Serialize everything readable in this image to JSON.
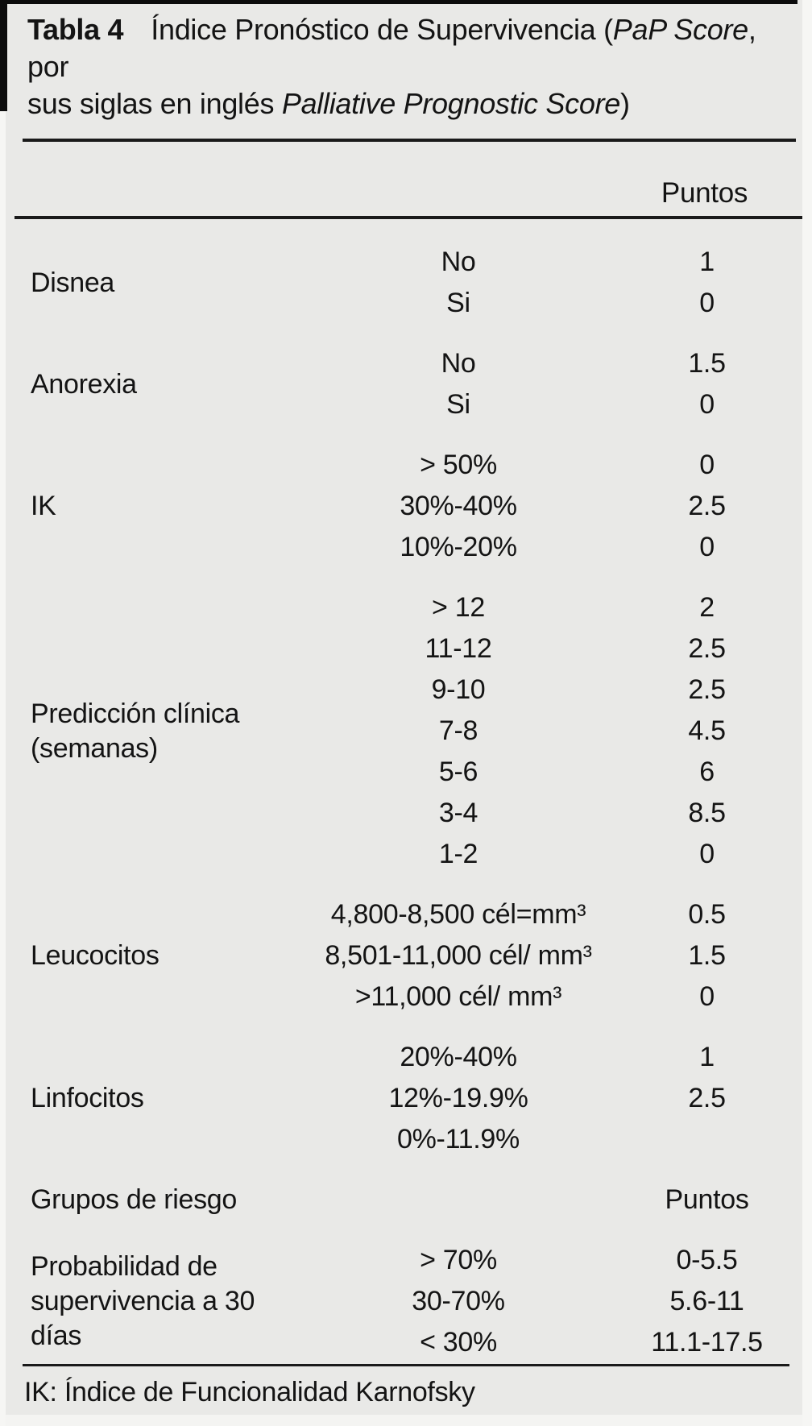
{
  "title": {
    "label": "Tabla 4",
    "segment1": "Índice Pronóstico de Supervivencia (",
    "italic1": "PaP Score",
    "segment2": ", por\nsus siglas en inglés ",
    "italic2": "Palliative Prognostic Score",
    "segment3": ")"
  },
  "header": {
    "points_label": "Puntos"
  },
  "table": {
    "groups": [
      {
        "label": "Disnea",
        "rows": [
          {
            "value": "No",
            "points": "1"
          },
          {
            "value": "Si",
            "points": "0"
          }
        ]
      },
      {
        "label": "Anorexia",
        "rows": [
          {
            "value": "No",
            "points": "1.5"
          },
          {
            "value": "Si",
            "points": "0"
          }
        ]
      },
      {
        "label": "IK",
        "rows": [
          {
            "value": "> 50%",
            "points": "0"
          },
          {
            "value": "30%-40%",
            "points": "2.5"
          },
          {
            "value": "10%-20%",
            "points": "0"
          }
        ]
      },
      {
        "label": "Predicción clínica\n(semanas)",
        "rows": [
          {
            "value": "> 12",
            "points": "2"
          },
          {
            "value": "11-12",
            "points": "2.5"
          },
          {
            "value": "9-10",
            "points": "2.5"
          },
          {
            "value": "7-8",
            "points": "4.5"
          },
          {
            "value": "5-6",
            "points": "6"
          },
          {
            "value": "3-4",
            "points": "8.5"
          },
          {
            "value": "1-2",
            "points": "0"
          }
        ]
      },
      {
        "label": "Leucocitos",
        "rows": [
          {
            "value": "4,800-8,500 cél=mm³",
            "points": "0.5"
          },
          {
            "value": "8,501-11,000 cél/ mm³",
            "points": "1.5"
          },
          {
            "value": ">11,000 cél/ mm³",
            "points": "0"
          }
        ]
      },
      {
        "label": "Linfocitos",
        "rows": [
          {
            "value": "20%-40%",
            "points": "1"
          },
          {
            "value": "12%-19.9%",
            "points": "2.5"
          },
          {
            "value": "0%-11.9%",
            "points": ""
          }
        ]
      }
    ],
    "subheader": {
      "label": "Grupos de riesgo",
      "points_label": "Puntos"
    },
    "risk_group": {
      "label": "Probabilidad de\nsupervivencia a 30\ndías",
      "rows": [
        {
          "value": "> 70%",
          "points": "0-5.5"
        },
        {
          "value": "30-70%",
          "points": "5.6-11"
        },
        {
          "value": "< 30%",
          "points": "11.1-17.5"
        }
      ]
    }
  },
  "footnote": "IK: Índice de Funcionalidad Karnofsky",
  "colors": {
    "background": "#e9e9e7",
    "text": "#141414",
    "rule": "#1a1a1a"
  }
}
